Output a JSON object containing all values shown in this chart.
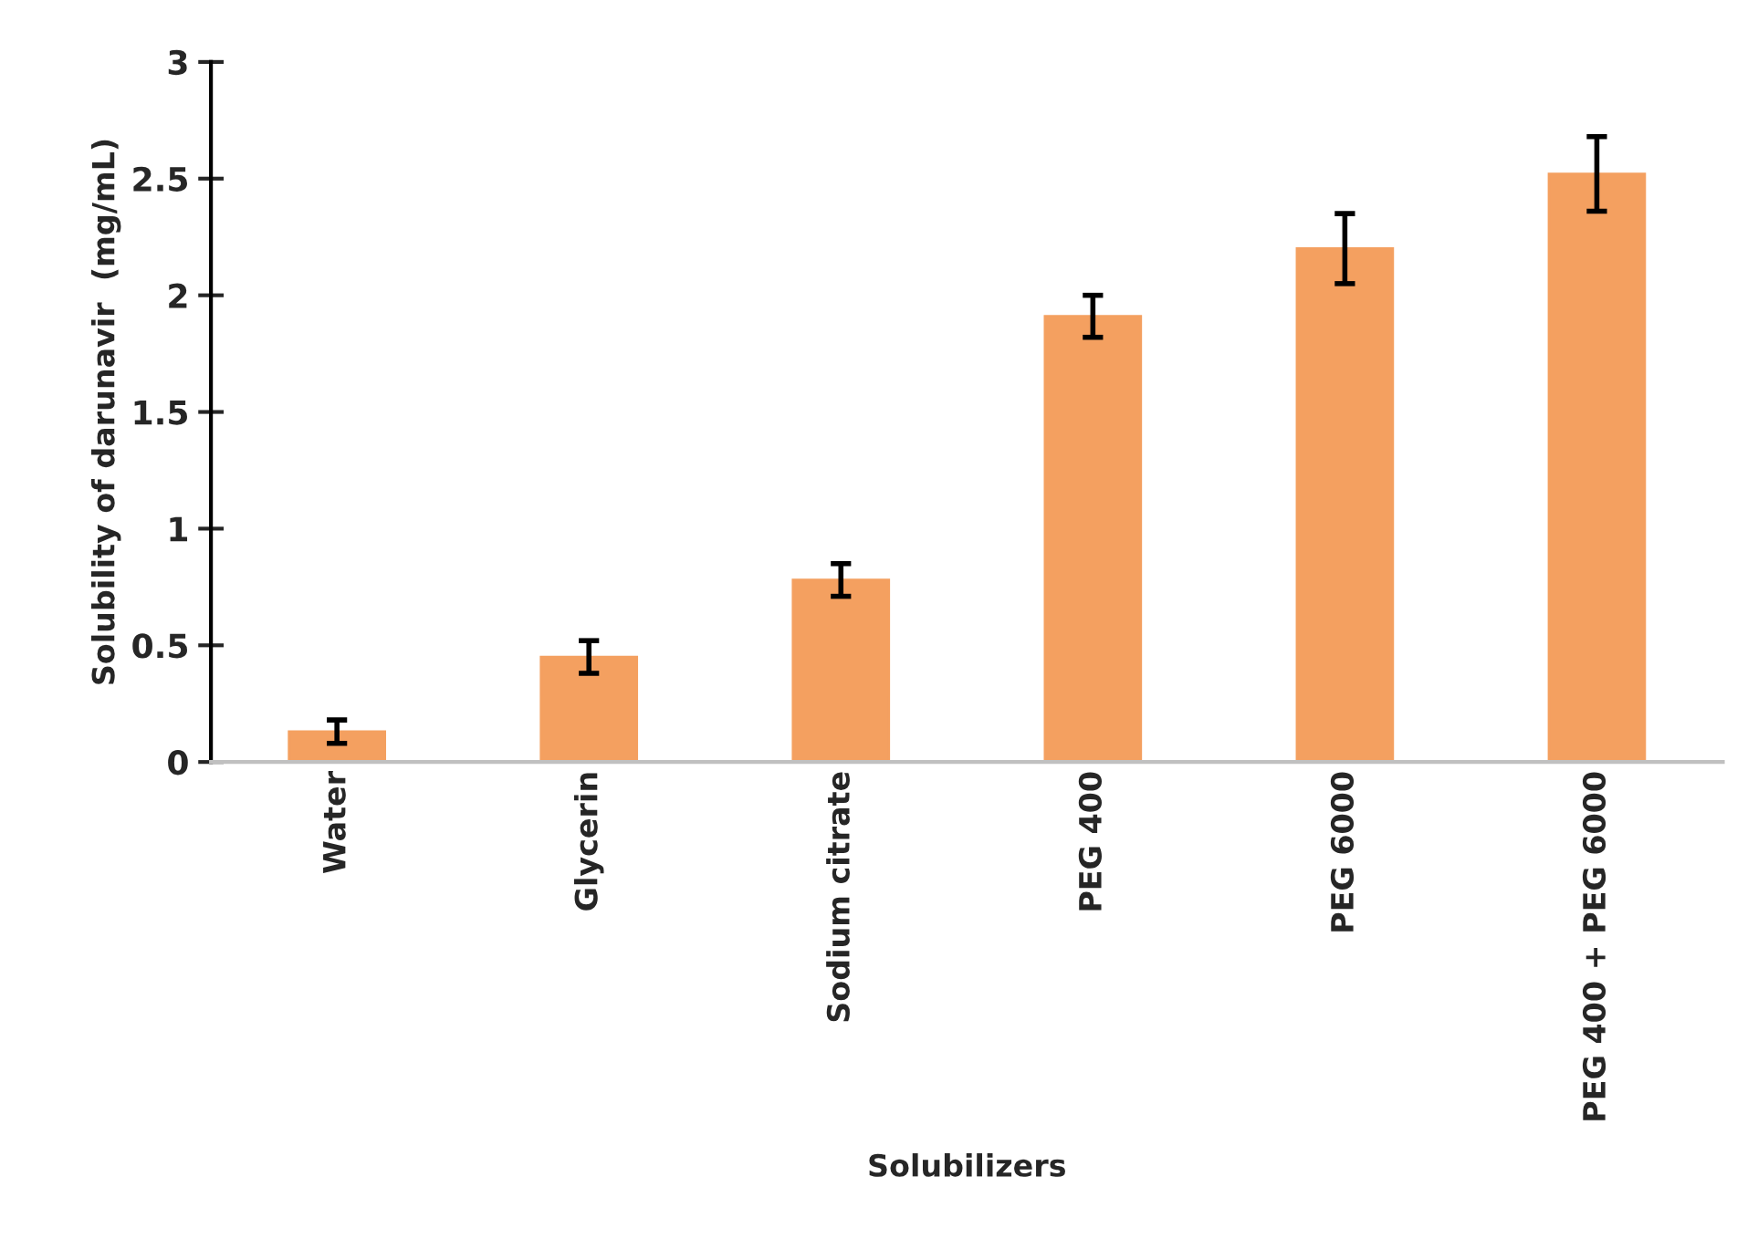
{
  "chart_data": {
    "type": "bar",
    "xlabel": "Solubilizers",
    "ylabel": "Solubility of darunavir  (mg/mL)",
    "categories": [
      "Water",
      "Glycerin",
      "Sodium citrate",
      "PEG 400",
      "PEG 6000",
      "PEG 400 + PEG 6000"
    ],
    "values": [
      0.13,
      0.45,
      0.78,
      1.91,
      2.2,
      2.52
    ],
    "errors": [
      0.05,
      0.07,
      0.07,
      0.09,
      0.15,
      0.16
    ],
    "color": "#f4a060",
    "ylim": [
      0,
      3
    ],
    "yticks": [
      0,
      0.5,
      1,
      1.5,
      2,
      2.5,
      3
    ],
    "grid": false,
    "legend": false
  }
}
